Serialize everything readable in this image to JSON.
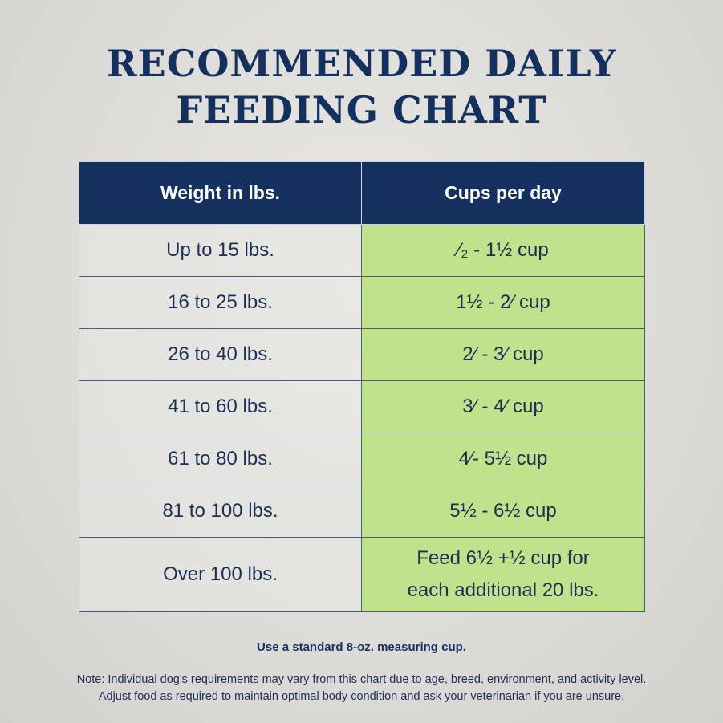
{
  "title": {
    "line1": "RECOMMENDED DAILY",
    "line2": "FEEDING CHART"
  },
  "table": {
    "headers": [
      "Weight in lbs.",
      "Cups per day"
    ],
    "rows": [
      {
        "weight": "Up to 15 lbs.",
        "cups": "⁄₂ - 1½ cup"
      },
      {
        "weight": "16 to 25 lbs.",
        "cups": "1½  - 2⁄ cup"
      },
      {
        "weight": "26 to 40 lbs.",
        "cups": "2⁄ - 3⁄ cup"
      },
      {
        "weight": "41 to 60 lbs.",
        "cups": "3⁄ - 4⁄ cup"
      },
      {
        "weight": "61 to 80 lbs.",
        "cups": "4⁄- 5½ cup"
      },
      {
        "weight": "81 to 100 lbs.",
        "cups": "5½ - 6½ cup"
      },
      {
        "weight": "Over 100 lbs.",
        "cups_line1": "Feed 6½ +½ cup for",
        "cups_line2": "each additional 20 lbs."
      }
    ]
  },
  "footnote": "Use a standard 8-oz. measuring cup.",
  "note": {
    "line1": "Note: Individual dog's requirements may vary from this chart due to age, breed, environment, and activity level.",
    "line2": "Adjust food as required to maintain optimal body condition and ask your veterinarian if you are unsure."
  },
  "colors": {
    "navy": "#14305e",
    "green_cell": "#bfe28a",
    "background": "#e2e1dd"
  }
}
